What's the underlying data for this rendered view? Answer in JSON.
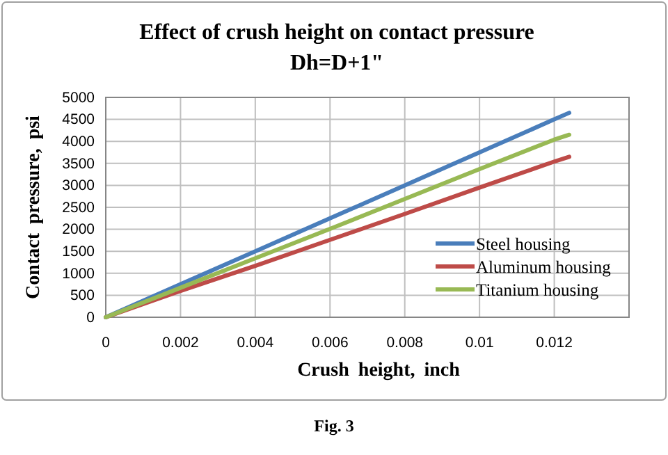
{
  "chart_data": {
    "type": "line",
    "title": "Effect of crush height on contact pressure",
    "subtitle": "Dh=D+1\"",
    "xlabel": "Crush height, inch",
    "ylabel": "Contact pressure, psi",
    "x": [
      0,
      0.002,
      0.004,
      0.006,
      0.008,
      0.01,
      0.012,
      0.0124
    ],
    "series": [
      {
        "name": "Steel housing",
        "color": "#4a7ebb",
        "values": [
          0,
          750,
          1500,
          2250,
          3000,
          3750,
          4500,
          4650
        ]
      },
      {
        "name": "Aluminum housing",
        "color": "#be4b48",
        "values": [
          0,
          600,
          1170,
          1760,
          2350,
          2950,
          3540,
          3650
        ]
      },
      {
        "name": "Titanium housing",
        "color": "#98b954",
        "values": [
          0,
          670,
          1340,
          2010,
          2690,
          3370,
          4040,
          4150
        ]
      }
    ],
    "xlim": [
      0,
      0.014
    ],
    "xticks": [
      0,
      0.002,
      0.004,
      0.006,
      0.008,
      0.01,
      0.012
    ],
    "ylim": [
      0,
      5000
    ],
    "yticks": [
      0,
      500,
      1000,
      1500,
      2000,
      2500,
      3000,
      3500,
      4000,
      4500,
      5000
    ],
    "grid": true,
    "legend": "bottom right",
    "marker": "none",
    "line_style": "solid",
    "annotations": [
      "Fig. 3"
    ]
  }
}
